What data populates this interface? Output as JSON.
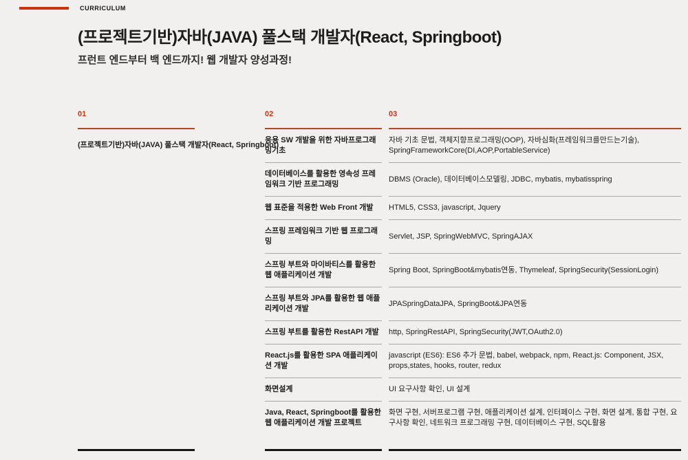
{
  "colors": {
    "background": "#f1f0ee",
    "accent_red": "#c6360f",
    "accent_bar_red": "#ca330d",
    "rule_red": "#b54427",
    "row_divider_gray": "#a9a9a9",
    "bottom_rule_black": "#141414",
    "text": "#1d1d1d"
  },
  "header": {
    "eyebrow": "CURRICULUM",
    "title": "(프로젝트기반)자바(JAVA) 풀스택 개발자(React, Springboot)",
    "subtitle": "프런트 엔드부터 백 엔드까지! 웹 개발자 양성과정!"
  },
  "course": {
    "number": "01",
    "name": "(프로젝트기반)자바(JAVA) 풀스택 개발자(React, Springboot)"
  },
  "table": {
    "module_col_number": "02",
    "detail_col_number": "03",
    "rows": [
      {
        "module": "응용 SW 개발을 위한 자바프로그래밍기초",
        "details": "자바 기초 문법, 객체지향프로그래밍(OOP), 자바심화(프레임워크를만드는기술), SpringFrameworkCore(DI,AOP,PortableService)"
      },
      {
        "module": "데이터베이스를 활용한 영속성 프레임워크 기반 프로그래밍",
        "details": "DBMS (Oracle), 데이터베이스모델링, JDBC, mybatis, mybatisspring"
      },
      {
        "module": "웹 표준을 적용한 Web Front 개발",
        "details": "HTML5, CSS3, javascript, Jquery"
      },
      {
        "module": "스프링 프레임워크 기반 웹 프로그래밍",
        "details": "Servlet, JSP, SpringWebMVC, SpringAJAX"
      },
      {
        "module": "스프링 부트와 마이바티스를 활용한 웹 애플리케이션 개발",
        "details": "Spring Boot, SpringBoot&mybatis연동, Thymeleaf, SpringSecurity(SessionLogin)"
      },
      {
        "module": "스프링 부트와 JPA를 활용한 웹 애플리케이션 개발",
        "details": "JPASpringDataJPA, SpringBoot&JPA연동"
      },
      {
        "module": "스프링 부트를 활용한 RestAPI 개발",
        "details": "http, SpringRestAPI, SpringSecurity(JWT,OAuth2.0)"
      },
      {
        "module": "React.js를 활용한 SPA 애플리케이션 개발",
        "details": "javascript (ES6): ES6 추가 문법, babel, webpack, npm, React.js: Component, JSX, props,states, hooks, router, redux"
      },
      {
        "module": "화면설계",
        "details": "UI 요구사항 확인, UI 설계"
      },
      {
        "module": "Java, React, Springboot를 활용한 웹 애플리케이션 개발 프로젝트",
        "details": "화면 구현, 서버프로그램 구현, 애플리케이션 설계, 인터페이스 구현, 화면 설계, 통합 구현, 요구사항 확인, 네트워크 프로그래밍 구현, 데이터베이스 구현, SQL활용"
      }
    ]
  }
}
